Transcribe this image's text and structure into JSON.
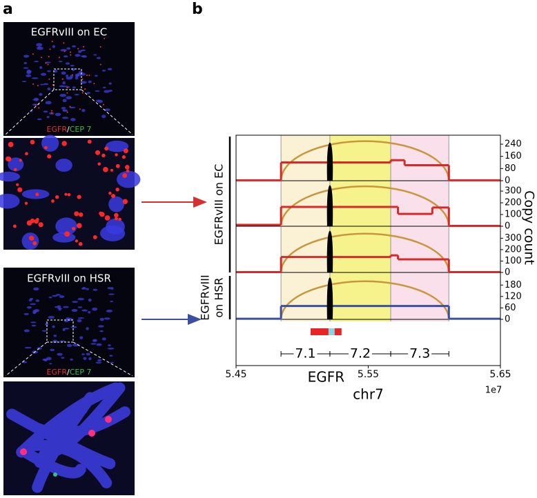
{
  "panel_a": {
    "label": "a",
    "images": [
      {
        "title": "EGFRvIII on EC",
        "probe": "EGFR",
        "separator": "/",
        "control": "CEP 7"
      },
      {
        "title": "EGFRvIII on HSR",
        "probe": "EGFR",
        "separator": "/",
        "control": "CEP 7"
      }
    ]
  },
  "chart_data": {
    "type": "step",
    "panel_label": "b",
    "xlabel": "chr7",
    "x_offset_label": "1e7",
    "ylabel": "Copy count",
    "xlim": [
      5.45,
      5.65
    ],
    "xticks": [
      5.45,
      5.55,
      5.65
    ],
    "regions": [
      {
        "label": "7.1",
        "start": 5.484,
        "end": 5.521,
        "color": "#fbf1d4"
      },
      {
        "label": "7.2",
        "start": 5.521,
        "end": 5.567,
        "color": "#f6f28c"
      },
      {
        "label": "7.3",
        "start": 5.567,
        "end": 5.611,
        "color": "#f9e0ea"
      }
    ],
    "gene": {
      "name": "EGFR",
      "start": 5.5064,
      "end": 5.5298,
      "deleted_start": 5.5199,
      "deleted_end": 5.5246,
      "color": "#e82525",
      "deleted_color": "#8fd0e2"
    },
    "groups": [
      {
        "label": [
          "EGFRvIII on EC"
        ],
        "tracks": [
          {
            "color": "#d42a2a",
            "ylim": [
              0,
              290
            ],
            "yticks": [
              0,
              80,
              160,
              240
            ],
            "segments": [
              {
                "start": 5.45,
                "end": 5.484,
                "value": 3
              },
              {
                "start": 5.484,
                "end": 5.567,
                "value": 120
              },
              {
                "start": 5.567,
                "end": 5.5775,
                "value": 135
              },
              {
                "start": 5.5775,
                "end": 5.611,
                "value": 102
              },
              {
                "start": 5.611,
                "end": 5.65,
                "value": 3
              }
            ],
            "arc": {
              "start": 5.484,
              "end": 5.611,
              "value": 260,
              "color": "#c8963c"
            },
            "spike": {
              "x": 5.521,
              "value": 251,
              "color": "#000000"
            }
          },
          {
            "color": "#d42a2a",
            "ylim": [
              0,
              365
            ],
            "yticks": [
              0,
              100,
              200,
              300
            ],
            "segments": [
              {
                "start": 5.45,
                "end": 5.484,
                "value": 12
              },
              {
                "start": 5.484,
                "end": 5.567,
                "value": 165
              },
              {
                "start": 5.567,
                "end": 5.5725,
                "value": 165
              },
              {
                "start": 5.5725,
                "end": 5.5985,
                "value": 105
              },
              {
                "start": 5.5985,
                "end": 5.611,
                "value": 160
              },
              {
                "start": 5.611,
                "end": 5.65,
                "value": 3
              }
            ],
            "arc": {
              "start": 5.484,
              "end": 5.611,
              "value": 341,
              "color": "#c8963c"
            },
            "spike": {
              "x": 5.521,
              "value": 350,
              "color": "#000000"
            }
          },
          {
            "color": "#d42a2a",
            "ylim": [
              0,
              375
            ],
            "yticks": [
              0,
              100,
              200,
              300
            ],
            "segments": [
              {
                "start": 5.45,
                "end": 5.484,
                "value": 3
              },
              {
                "start": 5.484,
                "end": 5.567,
                "value": 135
              },
              {
                "start": 5.567,
                "end": 5.5725,
                "value": 150
              },
              {
                "start": 5.5725,
                "end": 5.611,
                "value": 115
              },
              {
                "start": 5.611,
                "end": 5.65,
                "value": 3
              }
            ],
            "arc": {
              "start": 5.484,
              "end": 5.611,
              "value": 340,
              "color": "#c8963c"
            },
            "spike": {
              "x": 5.521,
              "value": 365,
              "color": "#000000"
            }
          }
        ]
      },
      {
        "label": [
          "EGFRvIII",
          "on HSR"
        ],
        "tracks": [
          {
            "color": "#3a4fa0",
            "ylim": [
              0,
              228
            ],
            "yticks": [
              0,
              60,
              120,
              180
            ],
            "segments": [
              {
                "start": 5.45,
                "end": 5.484,
                "value": 3
              },
              {
                "start": 5.484,
                "end": 5.611,
                "value": 70
              },
              {
                "start": 5.611,
                "end": 5.65,
                "value": 3
              }
            ],
            "arc": {
              "start": 5.484,
              "end": 5.611,
              "value": 200,
              "color": "#c8963c"
            },
            "spike": {
              "x": 5.521,
              "value": 220,
              "color": "#000000"
            }
          }
        ]
      }
    ]
  }
}
